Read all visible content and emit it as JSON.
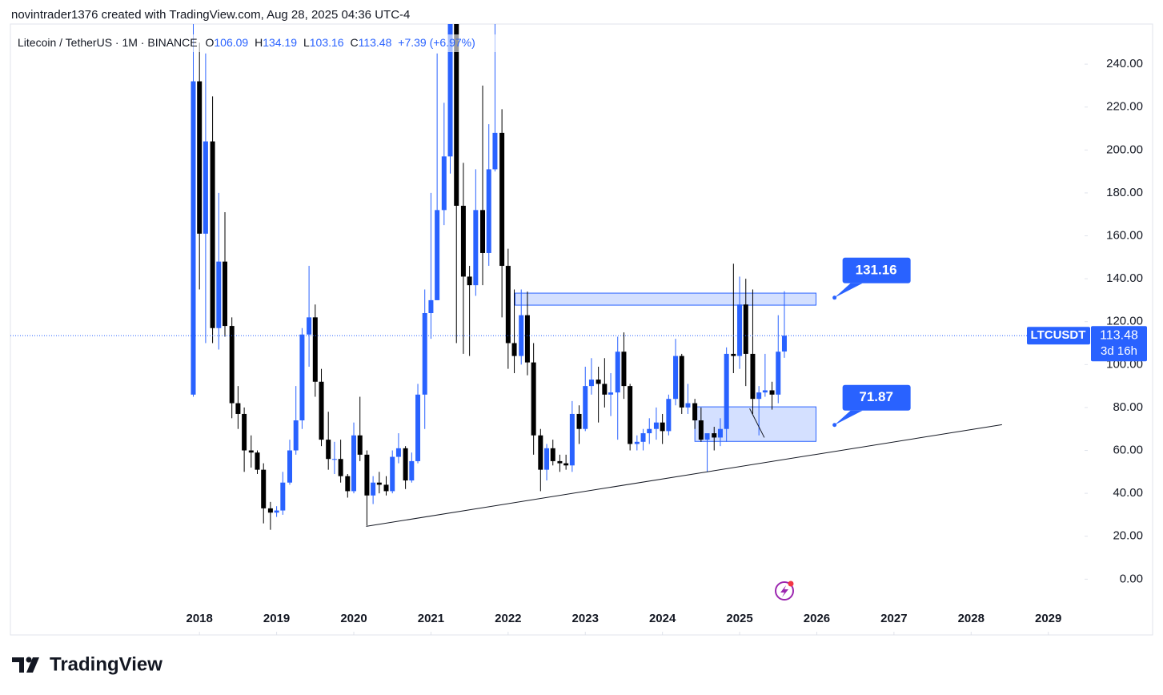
{
  "header": {
    "text": "novintrader1376 created with TradingView.com, Aug 28, 2025 04:36 UTC-4"
  },
  "legend": {
    "symbol": "Litecoin / TetherUS · 1M · BINANCE",
    "o": "O",
    "h": "H",
    "l": "L",
    "c": "C",
    "change": "+7.39 (+6.97%)"
  },
  "price_tag": {
    "ticker": "LTCUSDT",
    "countdown": "3d 16h"
  },
  "footer": {
    "brand": "TradingView"
  },
  "chart_data": {
    "type": "candlestick",
    "up_color": "#2962ff",
    "down_color": "#000000",
    "x": [
      2017.92,
      2018.0,
      2018.08,
      2018.17,
      2018.25,
      2018.33,
      2018.42,
      2018.5,
      2018.58,
      2018.67,
      2018.75,
      2018.83,
      2018.92,
      2019.0,
      2019.08,
      2019.17,
      2019.25,
      2019.33,
      2019.42,
      2019.5,
      2019.58,
      2019.67,
      2019.75,
      2019.83,
      2019.92,
      2020.0,
      2020.08,
      2020.17,
      2020.25,
      2020.33,
      2020.42,
      2020.5,
      2020.58,
      2020.67,
      2020.75,
      2020.83,
      2020.92,
      2021.0,
      2021.08,
      2021.17,
      2021.25,
      2021.33,
      2021.42,
      2021.5,
      2021.58,
      2021.67,
      2021.75,
      2021.83,
      2021.92,
      2022.0,
      2022.08,
      2022.17,
      2022.25,
      2022.33,
      2022.42,
      2022.5,
      2022.58,
      2022.67,
      2022.75,
      2022.83,
      2022.92,
      2023.0,
      2023.08,
      2023.17,
      2023.25,
      2023.33,
      2023.42,
      2023.5,
      2023.58,
      2023.67,
      2023.75,
      2023.83,
      2023.92,
      2024.0,
      2024.08,
      2024.17,
      2024.25,
      2024.33,
      2024.42,
      2024.5,
      2024.58,
      2024.67,
      2024.75,
      2024.83,
      2024.92,
      2025.0,
      2025.08,
      2025.17,
      2025.25,
      2025.33,
      2025.42,
      2025.5,
      2025.58
    ],
    "open": [
      86,
      232,
      161,
      204,
      117,
      148,
      118,
      82,
      77,
      60,
      59,
      51,
      33,
      31,
      32,
      45,
      60,
      74,
      114,
      122,
      92,
      65,
      56,
      56,
      48,
      41,
      67,
      58,
      39,
      45,
      44,
      41,
      57,
      61,
      46,
      55,
      86,
      124,
      130,
      172,
      197,
      279,
      174,
      141,
      137,
      172,
      152,
      191,
      208,
      146,
      110,
      104,
      123,
      101,
      67,
      51,
      61,
      55,
      54,
      53,
      77,
      70,
      90,
      93,
      91,
      86,
      87,
      106,
      90,
      63,
      64,
      68,
      70,
      73,
      69,
      84,
      104,
      80,
      82,
      74,
      65,
      68,
      66,
      70,
      105,
      104,
      128,
      105,
      84,
      87,
      88,
      86,
      106.09
    ],
    "high": [
      375,
      250,
      245,
      225,
      180,
      171,
      122,
      90,
      80,
      67,
      60,
      54,
      36,
      34,
      50,
      65,
      90,
      117,
      146,
      128,
      98,
      78,
      64,
      65,
      49,
      73,
      85,
      60,
      48,
      50,
      48,
      60,
      68,
      62,
      59,
      91,
      135,
      180,
      245,
      222,
      305,
      412,
      194,
      146,
      191,
      230,
      212,
      296,
      219,
      154,
      135,
      135,
      134,
      110,
      70,
      63,
      65,
      58,
      58,
      83,
      81,
      99,
      103,
      99,
      103,
      96,
      113,
      115,
      91,
      67,
      70,
      75,
      80,
      77,
      86,
      112,
      105,
      91,
      84,
      80,
      67,
      71,
      75,
      108,
      147,
      141,
      140,
      135,
      90,
      105,
      92,
      123,
      134.19
    ],
    "low": [
      85,
      135,
      110,
      110,
      107,
      113,
      75,
      70,
      50,
      52,
      49,
      26,
      23,
      29,
      30,
      44,
      58,
      70,
      99,
      85,
      62,
      51,
      49,
      45,
      38,
      40,
      55,
      25,
      35,
      40,
      39,
      40,
      54,
      42,
      45,
      54,
      70,
      112,
      130,
      165,
      189,
      110,
      105,
      104,
      132,
      137,
      146,
      190,
      122,
      98,
      96,
      100,
      95,
      58,
      41,
      46,
      53,
      50,
      51,
      50,
      63,
      69,
      86,
      73,
      80,
      76,
      65,
      84,
      60,
      60,
      60,
      63,
      65,
      63,
      67,
      81,
      77,
      77,
      70,
      64,
      50,
      60,
      62,
      64,
      96,
      98,
      90,
      77,
      67,
      85,
      79,
      82,
      103.16
    ],
    "close": [
      232,
      161,
      204,
      117,
      148,
      118,
      82,
      77,
      60,
      59,
      51,
      33,
      31,
      32,
      45,
      60,
      74,
      114,
      122,
      92,
      65,
      56,
      56,
      48,
      41,
      67,
      58,
      39,
      45,
      44,
      41,
      57,
      61,
      46,
      55,
      86,
      124,
      130,
      172,
      197,
      279,
      174,
      141,
      137,
      172,
      152,
      191,
      208,
      146,
      110,
      104,
      123,
      101,
      67,
      51,
      61,
      55,
      54,
      53,
      77,
      70,
      90,
      93,
      91,
      86,
      87,
      106,
      90,
      63,
      64,
      68,
      70,
      73,
      69,
      84,
      104,
      80,
      82,
      74,
      65,
      68,
      66,
      70,
      105,
      104,
      128,
      105,
      84,
      87,
      88,
      86,
      106,
      113.48
    ],
    "xlim": [
      2015.55,
      2029.47
    ],
    "xticks": [
      2018,
      2019,
      2020,
      2021,
      2022,
      2023,
      2024,
      2025,
      2026,
      2027,
      2028,
      2029
    ],
    "ylim": [
      -26,
      258.7
    ],
    "yticks": [
      {
        "value": 0,
        "label": "0.00"
      },
      {
        "value": 20,
        "label": "20.00"
      },
      {
        "value": 40,
        "label": "40.00"
      },
      {
        "value": 60,
        "label": "60.00"
      },
      {
        "value": 80,
        "label": "80.00"
      },
      {
        "value": 100,
        "label": "100.00"
      },
      {
        "value": 120,
        "label": "120.00"
      },
      {
        "value": 140,
        "label": "140.00"
      },
      {
        "value": 160,
        "label": "160.00"
      },
      {
        "value": 180,
        "label": "180.00"
      },
      {
        "value": 200,
        "label": "200.00"
      },
      {
        "value": 220,
        "label": "220.00"
      },
      {
        "value": 240,
        "label": "240.00"
      }
    ],
    "zones": [
      {
        "x": [
          2022.09,
          2025.99
        ],
        "y": [
          127.7,
          133.3
        ]
      },
      {
        "x": [
          2024.42,
          2025.99
        ],
        "y": [
          64.2,
          80.3
        ]
      }
    ],
    "lines": [
      {
        "x": [
          2020.16,
          2028.4
        ],
        "y": [
          24.6,
          72.0
        ]
      },
      {
        "x": [
          2025.13,
          2025.32
        ],
        "y": [
          79.5,
          66
        ]
      }
    ],
    "callouts": [
      {
        "x": 2026.23,
        "value": 131.16
      },
      {
        "x": 2026.23,
        "value": 71.87
      }
    ]
  }
}
